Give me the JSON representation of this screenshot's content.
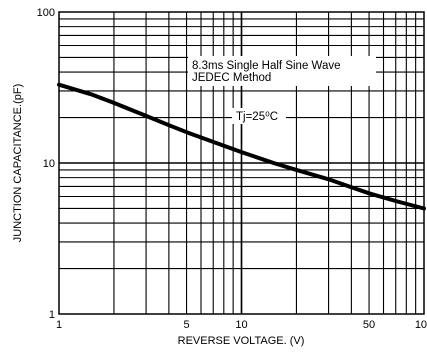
{
  "chart_data": {
    "type": "line",
    "title": "",
    "xlabel": "REVERSE VOLTAGE. (V)",
    "ylabel": "JUNCTION CAPACITANCE.(pF)",
    "x_scale": "log",
    "y_scale": "log",
    "xlim": [
      1,
      100
    ],
    "ylim": [
      1,
      100
    ],
    "grid": true,
    "x_ticks": [
      "1",
      "5",
      "10",
      "50",
      "100"
    ],
    "y_ticks": [
      "1",
      "10",
      "100"
    ],
    "annotations": [
      "8.3ms Single Half Sine Wave",
      "JEDEC Method",
      "Tj=25⁰C"
    ],
    "series": [
      {
        "x": [
          1,
          1.5,
          2,
          3,
          4,
          5,
          7,
          10,
          15,
          20,
          30,
          40,
          50,
          70,
          100
        ],
        "y": [
          33,
          28.5,
          25,
          20.5,
          17.8,
          16,
          13.8,
          11.8,
          10,
          9,
          7.8,
          6.9,
          6.3,
          5.6,
          5
        ]
      }
    ]
  }
}
